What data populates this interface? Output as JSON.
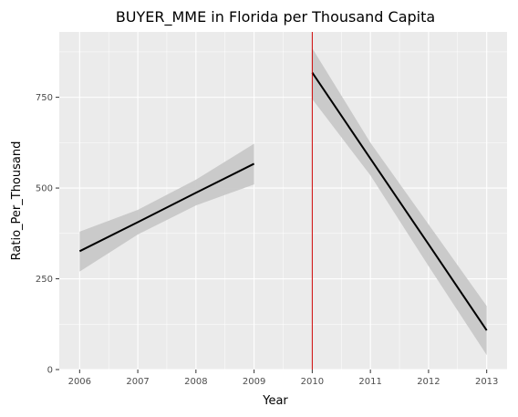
{
  "chart_data": {
    "type": "line",
    "title": "BUYER_MME in Florida per Thousand Capita",
    "xlabel": "Year",
    "ylabel": "Ratio_Per_Thousand",
    "xlim": [
      2005.65,
      2013.35
    ],
    "ylim": [
      0,
      930
    ],
    "x_ticks": [
      2006,
      2007,
      2008,
      2009,
      2010,
      2011,
      2012,
      2013
    ],
    "y_ticks": [
      0,
      250,
      500,
      750
    ],
    "grid": true,
    "vline": {
      "x": 2010,
      "color": "#cc0000"
    },
    "series": [
      {
        "segment": "before",
        "x": [
          2006,
          2007,
          2008,
          2009
        ],
        "y": [
          326,
          406,
          487,
          567
        ],
        "ci_lower": [
          270,
          372,
          452,
          510
        ],
        "ci_upper": [
          380,
          440,
          523,
          622
        ]
      },
      {
        "segment": "after",
        "x": [
          2010,
          2011,
          2012,
          2013
        ],
        "y": [
          818,
          581,
          345,
          108
        ],
        "ci_lower": [
          745,
          535,
          285,
          40
        ],
        "ci_upper": [
          885,
          625,
          400,
          175
        ]
      }
    ],
    "colors": {
      "panel": "#ebebeb",
      "grid": "#ffffff",
      "line": "#000000",
      "ribbon": "#c8c8c8",
      "vline": "#cc0000"
    }
  }
}
